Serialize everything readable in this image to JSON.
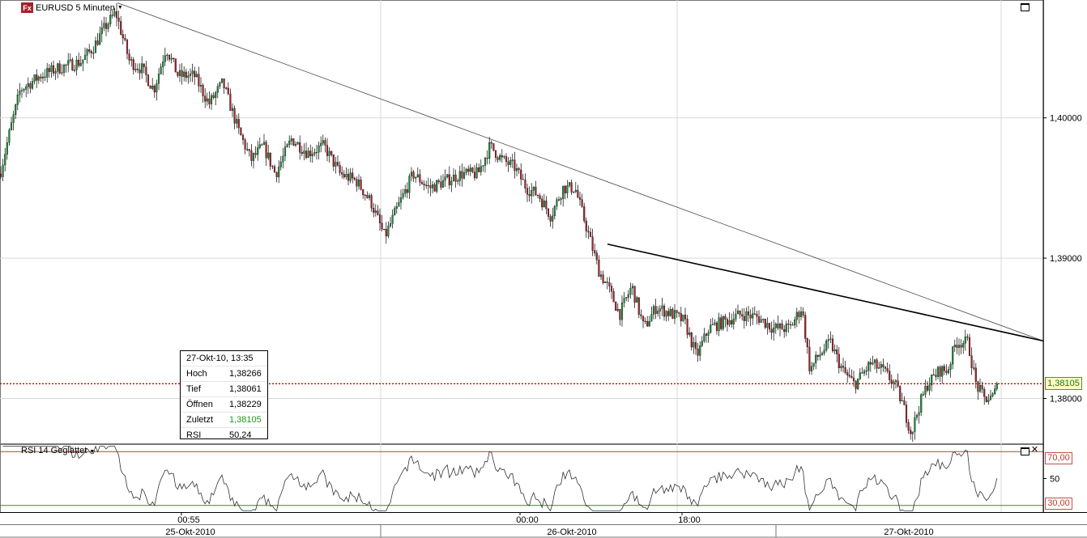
{
  "header": {
    "title": "EURUSD 5 Minuten",
    "logo": "Fx"
  },
  "rsi_header": {
    "title": "RSI 14 Geglättet"
  },
  "info": {
    "date": "27-Okt-10, 13:35",
    "rows": [
      {
        "label": "Hoch",
        "value": "1,38266"
      },
      {
        "label": "Tief",
        "value": "1,38061"
      },
      {
        "label": "Öffnen",
        "value": "1,38229"
      },
      {
        "label": "Zuletzt",
        "value": "1,38105"
      },
      {
        "label": "RSI",
        "value": "50,24"
      }
    ]
  },
  "price_axis": {
    "ticks": [
      "1,40000",
      "1,39000",
      "1,38000"
    ]
  },
  "last_price_label": "1,38105",
  "rsi_axis": {
    "ticks": [
      "70,00",
      "50",
      "30,00"
    ]
  },
  "time_axis": {
    "times": [
      "00:55",
      "00:00",
      "18:00"
    ],
    "dates": [
      "25-Okt-2010",
      "26-Okt-2010",
      "27-Okt-2010"
    ]
  },
  "colors": {
    "up": "#1e8a3a",
    "down": "#a3232b",
    "price_line": "#cc0000",
    "rsi_70": "#c0392b",
    "rsi_30": "#2e8b2e"
  },
  "chart_data": {
    "type": "candlestick",
    "title": "EURUSD 5 Minuten",
    "symbol": "EURUSD",
    "interval": "5 Minuten",
    "ylim": [
      1.3768,
      1.4084
    ],
    "last_close": 1.38105,
    "price_keypoints": [
      [
        0,
        1.396
      ],
      [
        12,
        1.399
      ],
      [
        25,
        1.402
      ],
      [
        50,
        1.403
      ],
      [
        70,
        1.4035
      ],
      [
        100,
        1.404
      ],
      [
        115,
        1.405
      ],
      [
        130,
        1.4065
      ],
      [
        143,
        1.4075
      ],
      [
        160,
        1.404
      ],
      [
        175,
        1.4035
      ],
      [
        190,
        1.402
      ],
      [
        205,
        1.405
      ],
      [
        220,
        1.403
      ],
      [
        240,
        1.403
      ],
      [
        258,
        1.401
      ],
      [
        275,
        1.4025
      ],
      [
        295,
        1.399
      ],
      [
        310,
        1.397
      ],
      [
        325,
        1.398
      ],
      [
        340,
        1.396
      ],
      [
        360,
        1.3985
      ],
      [
        380,
        1.3975
      ],
      [
        400,
        1.398
      ],
      [
        420,
        1.396
      ],
      [
        440,
        1.3955
      ],
      [
        458,
        1.394
      ],
      [
        475,
        1.3915
      ],
      [
        490,
        1.3935
      ],
      [
        510,
        1.396
      ],
      [
        530,
        1.395
      ],
      [
        550,
        1.3955
      ],
      [
        570,
        1.396
      ],
      [
        590,
        1.396
      ],
      [
        605,
        1.398
      ],
      [
        620,
        1.397
      ],
      [
        635,
        1.3965
      ],
      [
        650,
        1.395
      ],
      [
        665,
        1.3945
      ],
      [
        680,
        1.393
      ],
      [
        695,
        1.395
      ],
      [
        710,
        1.395
      ],
      [
        725,
        1.392
      ],
      [
        740,
        1.389
      ],
      [
        750,
        1.388
      ],
      [
        765,
        1.386
      ],
      [
        780,
        1.388
      ],
      [
        795,
        1.385
      ],
      [
        810,
        1.3865
      ],
      [
        830,
        1.386
      ],
      [
        845,
        1.3855
      ],
      [
        860,
        1.383
      ],
      [
        875,
        1.385
      ],
      [
        895,
        1.3855
      ],
      [
        915,
        1.386
      ],
      [
        935,
        1.3858
      ],
      [
        955,
        1.385
      ],
      [
        975,
        1.385
      ],
      [
        990,
        1.3865
      ],
      [
        1000,
        1.382
      ],
      [
        1010,
        1.383
      ],
      [
        1025,
        1.384
      ],
      [
        1040,
        1.382
      ],
      [
        1055,
        1.381
      ],
      [
        1075,
        1.3825
      ],
      [
        1090,
        1.382
      ],
      [
        1105,
        1.381
      ],
      [
        1115,
        1.3795
      ],
      [
        1125,
        1.3775
      ],
      [
        1135,
        1.3795
      ],
      [
        1145,
        1.381
      ],
      [
        1160,
        1.382
      ],
      [
        1170,
        1.382
      ],
      [
        1180,
        1.384
      ],
      [
        1195,
        1.384
      ],
      [
        1205,
        1.381
      ],
      [
        1215,
        1.38
      ],
      [
        1225,
        1.38
      ],
      [
        1233,
        1.381
      ]
    ],
    "trendlines": [
      {
        "from": [
          "25-Okt-2010",
          1.4082
        ],
        "to": [
          "27-Okt-2010",
          1.3841
        ],
        "weight": "thin"
      },
      {
        "from": [
          "26-Okt-2010",
          1.391
        ],
        "to": [
          "27-Okt-2010",
          1.3841
        ],
        "weight": "thick"
      }
    ],
    "rsi": {
      "name": "RSI 14 Geglättet",
      "period": 14,
      "levels": [
        70,
        30
      ],
      "ylim": [
        25,
        75
      ],
      "last": 50.24
    }
  }
}
